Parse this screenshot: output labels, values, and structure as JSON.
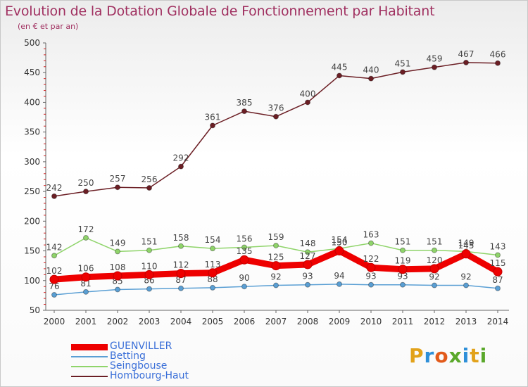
{
  "chart_data": {
    "type": "line",
    "title": "Evolution de la Dotation Globale de Fonctionnement par Habitant",
    "subtitle": "(en € et par an)",
    "xlabel": "",
    "ylabel": "",
    "ylim": [
      50,
      500
    ],
    "yticks": [
      "50",
      "100",
      "150",
      "200",
      "250",
      "300",
      "350",
      "400",
      "450",
      "500"
    ],
    "categories": [
      "2000",
      "2001",
      "2002",
      "2003",
      "2004",
      "2005",
      "2006",
      "2007",
      "2008",
      "2009",
      "2010",
      "2011",
      "2012",
      "2013",
      "2014"
    ],
    "series": [
      {
        "name": "Hombourg-Haut",
        "color": "#6b1e24",
        "values": [
          242,
          250,
          257,
          256,
          292,
          361,
          385,
          376,
          400,
          445,
          440,
          451,
          459,
          467,
          466
        ]
      },
      {
        "name": "Seingbouse",
        "color": "#8fd46a",
        "values": [
          142,
          172,
          149,
          151,
          158,
          154,
          156,
          159,
          148,
          154,
          163,
          151,
          151,
          149,
          143
        ]
      },
      {
        "name": "Betting",
        "color": "#5a9fd4",
        "values": [
          76,
          81,
          85,
          86,
          87,
          88,
          90,
          92,
          93,
          94,
          93,
          93,
          92,
          92,
          87
        ]
      },
      {
        "name": "GUENVILLER",
        "color": "#ee0000",
        "values": [
          102,
          106,
          108,
          110,
          112,
          113,
          135,
          125,
          127,
          150,
          122,
          119,
          120,
          145,
          115
        ]
      }
    ],
    "legend": [
      "GUENVILLER",
      "Betting",
      "Seingbouse",
      "Hombourg-Haut"
    ],
    "grid": false
  },
  "logo": {
    "letters": [
      "P",
      "r",
      "o",
      "x",
      "i",
      "t",
      "i"
    ],
    "colors": [
      "#e2a21a",
      "#2e8fd8",
      "#e25a1a",
      "#5aa82a",
      "#2e8fd8",
      "#e2a21a",
      "#5aa82a"
    ]
  }
}
